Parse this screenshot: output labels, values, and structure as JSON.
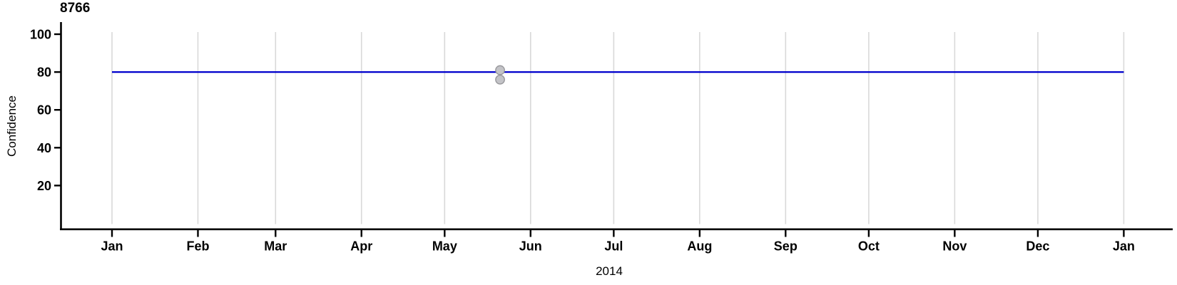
{
  "chart_data": {
    "type": "line",
    "title": "8766",
    "xlabel": "2014",
    "ylabel": "Confidence",
    "x_axis_type": "date",
    "x_tick_labels": [
      "Jan",
      "Feb",
      "Mar",
      "Apr",
      "May",
      "Jun",
      "Jul",
      "Aug",
      "Sep",
      "Oct",
      "Nov",
      "Dec",
      "Jan"
    ],
    "x_tick_days": [
      0,
      31,
      59,
      90,
      120,
      151,
      181,
      212,
      243,
      273,
      304,
      334,
      365
    ],
    "x_range_days": [
      0,
      365
    ],
    "y_ticks": [
      100,
      80,
      60,
      40,
      20
    ],
    "ylim": [
      0,
      106
    ],
    "grid": "vertical-only",
    "legend": "none",
    "series": [
      {
        "name": "confidence-threshold-line",
        "type": "line",
        "color": "#0000cc",
        "points": [
          {
            "day": 0,
            "y": 80
          },
          {
            "day": 365,
            "y": 80
          }
        ]
      }
    ],
    "scatter": {
      "name": "observations",
      "fill": "#c3c3c7",
      "stroke": "#97979b",
      "points": [
        {
          "day": 140,
          "y": 81
        },
        {
          "day": 140,
          "y": 76
        }
      ]
    },
    "colors": {
      "grid": "#d9d9d9",
      "axis": "#000000",
      "text": "#000000",
      "background": "#ffffff"
    }
  }
}
